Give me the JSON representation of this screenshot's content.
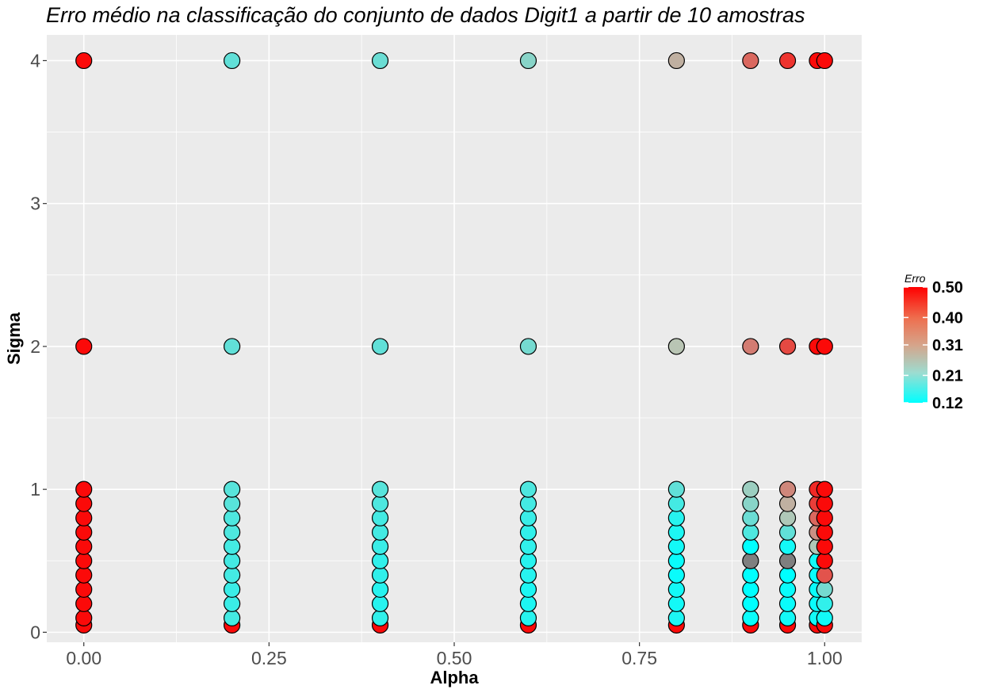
{
  "chart_data": {
    "type": "scatter",
    "title": "Erro médio na classificação do conjunto de dados Digit1 a partir de 10 amostras",
    "xlabel": "Alpha",
    "ylabel": "Sigma",
    "xlim": [
      -0.05,
      1.05
    ],
    "ylim": [
      -0.07,
      4.18
    ],
    "x_ticks": [
      "0.00",
      "0.25",
      "0.50",
      "0.75",
      "1.00"
    ],
    "x_tick_values": [
      0,
      0.25,
      0.5,
      0.75,
      1.0
    ],
    "y_ticks": [
      "0",
      "1",
      "2",
      "3",
      "4"
    ],
    "y_tick_values": [
      0,
      1,
      2,
      3,
      4
    ],
    "grid": true,
    "legend": {
      "title": "Erro",
      "placement": "right",
      "labels": [
        "0.50",
        "0.40",
        "0.31",
        "0.21",
        "0.12"
      ],
      "values": [
        0.5,
        0.4,
        0.31,
        0.21,
        0.12
      ],
      "color_low": "#00ffff",
      "color_mid": "#b9c5b4",
      "color_high": "#ff0000",
      "na_color": "#7f7f7f"
    },
    "sigma_levels": [
      0.05,
      0.1,
      0.2,
      0.3,
      0.4,
      0.5,
      0.6,
      0.7,
      0.8,
      0.9,
      1.0,
      2.0,
      4.0
    ],
    "columns": [
      {
        "alpha": 0.0,
        "erro": [
          0.49,
          0.49,
          0.49,
          0.49,
          0.49,
          0.49,
          0.49,
          0.49,
          0.49,
          0.49,
          0.49,
          0.49,
          0.49
        ]
      },
      {
        "alpha": 0.2,
        "erro": [
          0.49,
          0.19,
          0.18,
          0.18,
          0.19,
          0.19,
          0.19,
          0.2,
          0.2,
          0.21,
          0.21,
          0.22,
          0.22
        ]
      },
      {
        "alpha": 0.4,
        "erro": [
          0.49,
          0.17,
          0.16,
          0.16,
          0.17,
          0.17,
          0.18,
          0.19,
          0.19,
          0.2,
          0.21,
          0.22,
          0.23
        ]
      },
      {
        "alpha": 0.6,
        "erro": [
          0.49,
          0.16,
          0.15,
          0.15,
          0.16,
          0.16,
          0.17,
          0.17,
          0.18,
          0.19,
          0.2,
          0.24,
          0.26
        ]
      },
      {
        "alpha": 0.8,
        "erro": [
          0.49,
          0.15,
          0.14,
          0.14,
          0.13,
          0.13,
          0.14,
          0.15,
          0.16,
          0.19,
          0.22,
          0.31,
          0.33
        ]
      },
      {
        "alpha": 0.9,
        "erro": [
          0.49,
          0.13,
          0.12,
          0.12,
          0.12,
          null,
          0.12,
          0.2,
          0.23,
          0.26,
          0.28,
          0.38,
          0.4
        ]
      },
      {
        "alpha": 0.95,
        "erro": [
          0.49,
          0.14,
          0.13,
          0.13,
          0.12,
          null,
          0.14,
          0.22,
          0.3,
          0.33,
          0.37,
          0.43,
          0.45
        ]
      },
      {
        "alpha": 0.99,
        "erro": [
          0.49,
          0.14,
          0.13,
          0.13,
          0.13,
          0.14,
          0.3,
          0.36,
          0.4,
          0.44,
          0.46,
          0.49,
          0.49
        ]
      },
      {
        "alpha": 1.0,
        "erro": [
          0.49,
          0.14,
          0.17,
          0.24,
          0.42,
          0.49,
          0.49,
          0.49,
          0.49,
          0.49,
          0.49,
          0.49,
          0.49
        ]
      }
    ]
  }
}
